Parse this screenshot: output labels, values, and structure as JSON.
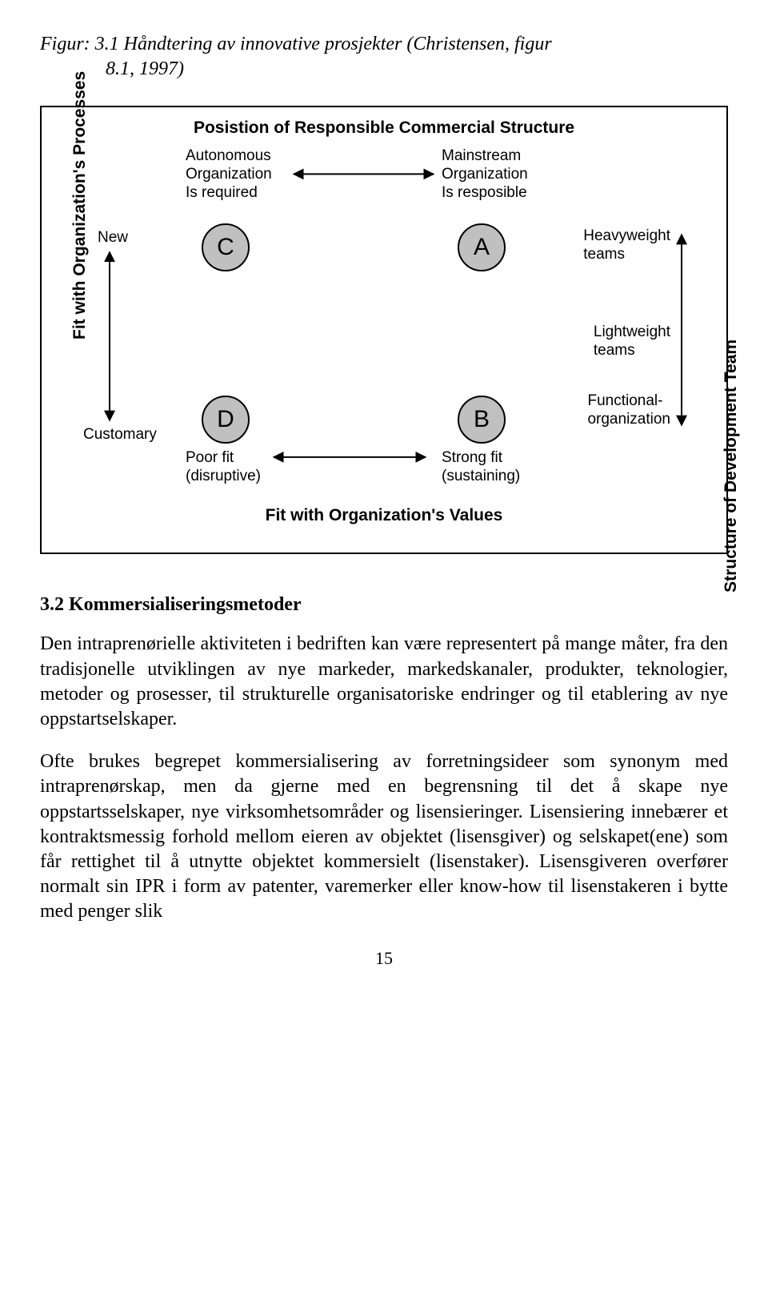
{
  "figure": {
    "caption": "Figur: 3.1 Håndtering av innovative prosjekter (Christensen, figur\n            8.1, 1997)",
    "title": "Posistion of Responsible Commercial Structure",
    "cols": {
      "left": "Autonomous\nOrganization\nIs required",
      "right": "Mainstream\nOrganization\nIs resposible"
    },
    "rows": {
      "top": "Heavyweight\nteams",
      "mid": "Lightweight\nteams",
      "bot": "Functional-\norganization"
    },
    "left_axis_labels": {
      "top": "New",
      "bottom": "Customary"
    },
    "fit_labels": {
      "poor": "Poor fit\n(disruptive)",
      "strong": "Strong fit\n(sustaining)"
    },
    "axes": {
      "x": "Fit with Organization's Values",
      "y": "Fit with Organization's Processes",
      "right": "Structure of Development Team"
    },
    "nodes": {
      "C": "C",
      "A": "A",
      "D": "D",
      "B": "B"
    },
    "circle_fill": "#c0c0c0",
    "circle_stroke": "#000000",
    "frame_stroke": "#000000",
    "title_fontsize": 21,
    "label_fontsize": 19
  },
  "section": {
    "heading": "3.2 Kommersialiseringsmetoder",
    "p1": "Den intraprenørielle aktiviteten i bedriften kan være representert på mange måter, fra den tradisjonelle utviklingen av nye markeder, markedskanaler, produkter, teknologier, metoder og prosesser, til strukturelle organisatoriske endringer og til etablering av nye oppstartselskaper.",
    "p2": "Ofte brukes begrepet kommersialisering av forretningsideer som synonym med intraprenørskap, men da gjerne med en begrensning til det å skape nye oppstartsselskaper, nye virksomhetsområder og lisensieringer. Lisensiering innebærer et kontraktsmessig forhold mellom eieren av objektet (lisensgiver) og selskapet(ene) som får rettighet til å utnytte objektet kommersielt (lisenstaker). Lisensgiveren overfører normalt sin IPR i form av patenter, varemerker eller know-how til lisenstakeren i bytte med penger slik"
  },
  "page_number": "15"
}
